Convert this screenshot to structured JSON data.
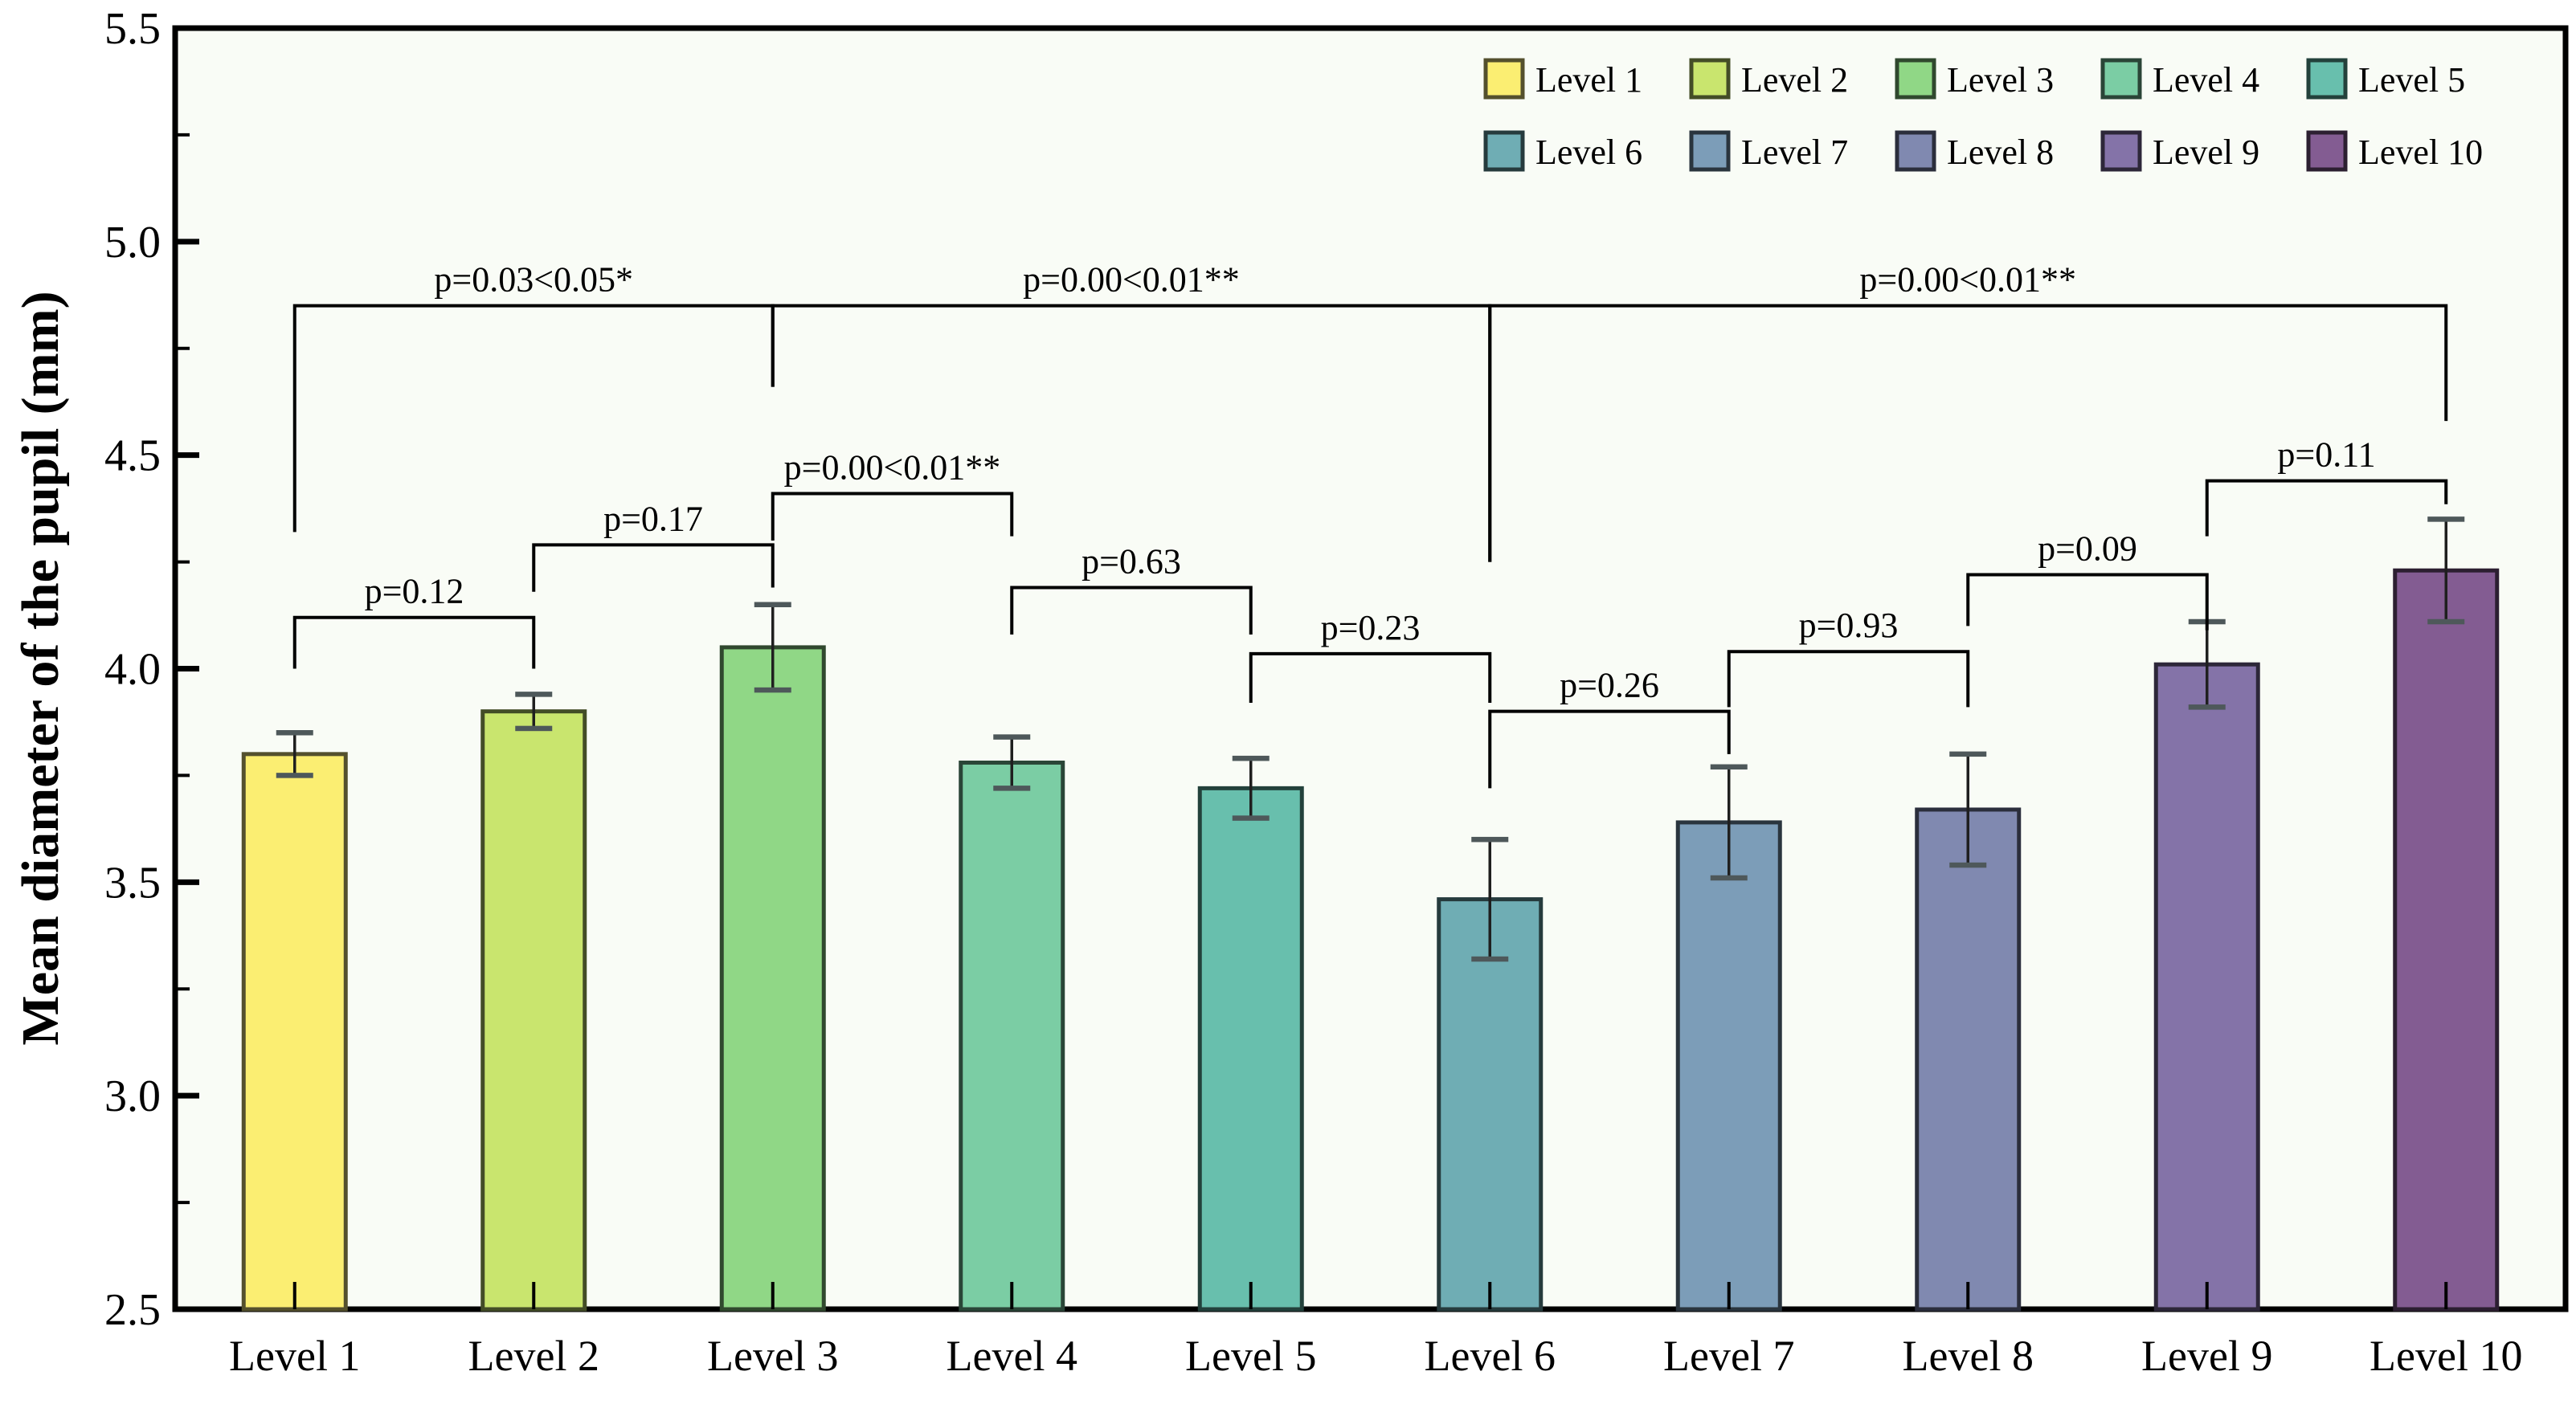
{
  "chart_data": {
    "type": "bar",
    "title": "",
    "xlabel": "",
    "ylabel": "Mean diameter of the pupil (mm)",
    "ylim": [
      2.5,
      5.5
    ],
    "ytick_values": [
      2.5,
      3.0,
      3.5,
      4.0,
      4.5,
      5.0,
      5.5
    ],
    "ytick_labels": [
      "2.5",
      "3.0",
      "3.5",
      "4.0",
      "4.5",
      "5.0",
      "5.5"
    ],
    "yminor_values": [
      2.75,
      3.25,
      3.75,
      4.25,
      4.75,
      5.25
    ],
    "grid": false,
    "categories": [
      "Level 1",
      "Level 2",
      "Level 3",
      "Level 4",
      "Level 5",
      "Level 6",
      "Level 7",
      "Level 8",
      "Level 9",
      "Level 10"
    ],
    "values": [
      3.8,
      3.9,
      4.05,
      3.78,
      3.72,
      3.46,
      3.64,
      3.67,
      4.01,
      4.23
    ],
    "errors": [
      0.05,
      0.04,
      0.1,
      0.06,
      0.07,
      0.14,
      0.13,
      0.13,
      0.1,
      0.12
    ],
    "bar_colors": [
      "#fbee72",
      "#c9e56e",
      "#90d786",
      "#7bcda4",
      "#68bfad",
      "#6fadb4",
      "#7c9db8",
      "#8089b0",
      "#8473a8",
      "#835c92"
    ],
    "bar_edge_colors": [
      "#54502d",
      "#434d27",
      "#30482e",
      "#2a4537",
      "#23413b",
      "#263b3d",
      "#2a353e",
      "#2b2e3c",
      "#2d2739",
      "#2c1f31"
    ],
    "plot_bg_color": "#f9fcf6",
    "frame_color": "#000000",
    "errorbar_color": "#1f1f1f",
    "errorbar_cap_color": "#4e585a",
    "bracket_color": "#000000",
    "legend": {
      "position": "top-right-inside",
      "rows": [
        [
          "Level 1",
          "Level 2",
          "Level 3",
          "Level 4",
          "Level 5"
        ],
        [
          "Level 6",
          "Level 7",
          "Level 8",
          "Level 9",
          "Level 10"
        ]
      ]
    },
    "significance_brackets": [
      {
        "from": 1,
        "to": 2,
        "label": "p=0.12",
        "y": 4.12,
        "drop_from": 4.0,
        "drop_to": 4.0
      },
      {
        "from": 2,
        "to": 3,
        "label": "p=0.17",
        "y": 4.29,
        "drop_from": 4.18,
        "drop_to": 4.19
      },
      {
        "from": 3,
        "to": 4,
        "label": "p=0.00<0.01**",
        "y": 4.41,
        "drop_from": 4.3,
        "drop_to": 4.31
      },
      {
        "from": 4,
        "to": 5,
        "label": "p=0.63",
        "y": 4.19,
        "drop_from": 4.08,
        "drop_to": 4.08
      },
      {
        "from": 5,
        "to": 6,
        "label": "p=0.23",
        "y": 4.035,
        "drop_from": 3.92,
        "drop_to": 3.92
      },
      {
        "from": 6,
        "to": 7,
        "label": "p=0.26",
        "y": 3.9,
        "drop_from": 3.72,
        "drop_to": 3.8
      },
      {
        "from": 7,
        "to": 8,
        "label": "p=0.93",
        "y": 4.04,
        "drop_from": 3.91,
        "drop_to": 3.91
      },
      {
        "from": 8,
        "to": 9,
        "label": "p=0.09",
        "y": 4.22,
        "drop_from": 4.1,
        "drop_to": 4.09
      },
      {
        "from": 9,
        "to": 10,
        "label": "p=0.11",
        "y": 4.44,
        "drop_from": 4.31,
        "drop_to": 4.385
      },
      {
        "from": 1,
        "to": 3,
        "label": "p=0.03<0.05*",
        "y": 4.85,
        "drop_from": 4.32,
        "drop_to": 4.66
      },
      {
        "from": 3,
        "to": 6,
        "label": "p=0.00<0.01**",
        "y": 4.85,
        "drop_from": 4.66,
        "drop_to": 4.25
      },
      {
        "from": 6,
        "to": 10,
        "label": "p=0.00<0.01**",
        "y": 4.85,
        "drop_from": 4.25,
        "drop_to": 4.58
      }
    ]
  }
}
